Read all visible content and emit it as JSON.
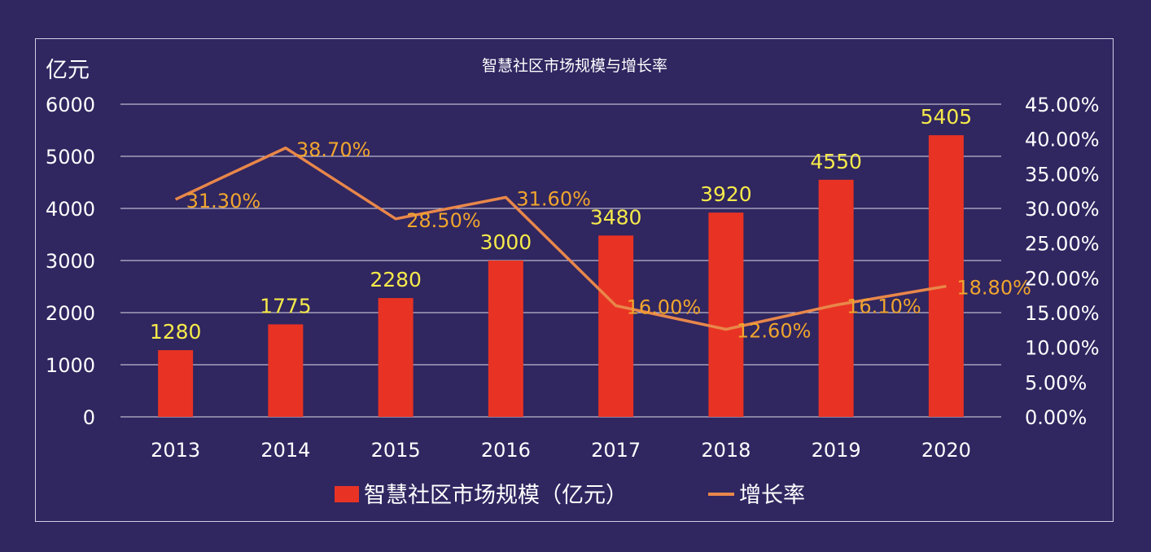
{
  "chart_data": {
    "type": "bar",
    "title": "智慧社区市场规模与增长率",
    "y_unit_label": "亿元",
    "categories": [
      "2013",
      "2014",
      "2015",
      "2016",
      "2017",
      "2018",
      "2019",
      "2020"
    ],
    "series": [
      {
        "name": "智慧社区市场规模（亿元）",
        "type": "bar",
        "axis": "left",
        "values": [
          1280,
          1775,
          2280,
          3000,
          3480,
          3920,
          4550,
          5405
        ],
        "labels": [
          "1280",
          "1775",
          "2280",
          "3000",
          "3480",
          "3920",
          "4550",
          "5405"
        ],
        "color": "#e83324",
        "label_color": "#f5ea4a"
      },
      {
        "name": "增长率",
        "type": "line",
        "axis": "right",
        "values": [
          31.3,
          38.7,
          28.5,
          31.6,
          16.0,
          12.6,
          16.1,
          18.8
        ],
        "labels": [
          "31.30%",
          "38.70%",
          "28.50%",
          "31.60%",
          "16.00%",
          "12.60%",
          "16.10%",
          "18.80%"
        ],
        "color": "#e8874a",
        "label_color": "#f0a52e"
      }
    ],
    "y_left": {
      "range": [
        0,
        6000
      ],
      "ticks": [
        0,
        1000,
        2000,
        3000,
        4000,
        5000,
        6000
      ],
      "tick_labels": [
        "0",
        "1000",
        "2000",
        "3000",
        "4000",
        "5000",
        "6000"
      ]
    },
    "y_right": {
      "range": [
        0,
        45
      ],
      "ticks": [
        0,
        5,
        10,
        15,
        20,
        25,
        30,
        35,
        40,
        45
      ],
      "tick_labels": [
        "0.00%",
        "5.00%",
        "10.00%",
        "15.00%",
        "20.00%",
        "25.00%",
        "30.00%",
        "35.00%",
        "40.00%",
        "45.00%"
      ]
    },
    "grid": true,
    "legend": "bottom",
    "colors": {
      "background": "#302660",
      "grid": "#ffffff",
      "text": "#ffffff"
    }
  }
}
